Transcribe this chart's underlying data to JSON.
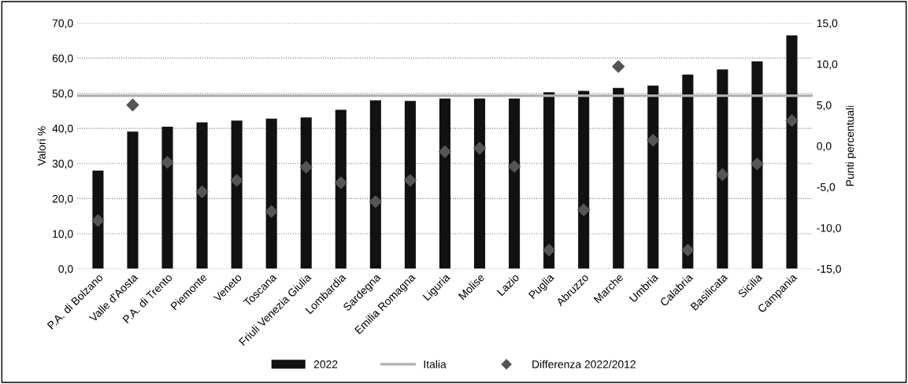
{
  "chart_data": {
    "type": "bar",
    "ylabel": "Valori %",
    "y2label": "Punti percentuali",
    "categories": [
      "P.A. di Bolzano",
      "Valle d'Aosta",
      "P.A. di Trento",
      "Piemonte",
      "Veneto",
      "Toscana",
      "Friuli Venezia Giulia",
      "Lombardia",
      "Sardegna",
      "Emilia Romagna",
      "Liguria",
      "Molise",
      "Lazio",
      "Puglia",
      "Abruzzo",
      "Marche",
      "Umbria",
      "Calabria",
      "Basilicata",
      "Sicilia",
      "Campania"
    ],
    "series": [
      {
        "name": "2022",
        "color": "#111111",
        "values": [
          28.0,
          39.1,
          40.5,
          41.7,
          42.2,
          42.8,
          43.1,
          45.3,
          48.0,
          47.8,
          48.5,
          48.5,
          48.5,
          50.3,
          50.7,
          51.5,
          52.2,
          55.3,
          56.8,
          59.1,
          66.5
        ]
      },
      {
        "name": "Differenza 2022/2012",
        "type": "scatter",
        "axis": "y2",
        "marker": "diamond",
        "color": "#555555",
        "values": [
          -9.1,
          5.0,
          -2.0,
          -5.6,
          -4.2,
          -8.0,
          -2.6,
          -4.5,
          -6.8,
          -4.2,
          -0.7,
          -0.3,
          -2.5,
          -12.7,
          -7.8,
          9.7,
          0.7,
          -12.7,
          -3.5,
          -2.2,
          3.1
        ]
      }
    ],
    "ref_lines": [
      {
        "axis": "y",
        "value": 49.3,
        "label": "Italia",
        "color": "#b0b0b0"
      }
    ],
    "ylim": [
      0,
      70
    ],
    "yticks": [
      {
        "value": 0,
        "label": "0,0"
      },
      {
        "value": 10,
        "label": "10,0"
      },
      {
        "value": 20,
        "label": "20,0"
      },
      {
        "value": 30,
        "label": "30,0"
      },
      {
        "value": 40,
        "label": "40,0"
      },
      {
        "value": 50,
        "label": "50,0"
      },
      {
        "value": 60,
        "label": "60,0"
      },
      {
        "value": 70,
        "label": "70,0"
      }
    ],
    "y2lim": [
      -15,
      15
    ],
    "y2ticks": [
      {
        "value": -15,
        "label": "-15,0"
      },
      {
        "value": -10,
        "label": "-10,0"
      },
      {
        "value": -5,
        "label": "-5,0"
      },
      {
        "value": 0,
        "label": "0,0"
      },
      {
        "value": 5,
        "label": "5,0"
      },
      {
        "value": 10,
        "label": "10,0"
      },
      {
        "value": 15,
        "label": "15,0"
      }
    ],
    "grid": "y",
    "legend": "bottom"
  }
}
